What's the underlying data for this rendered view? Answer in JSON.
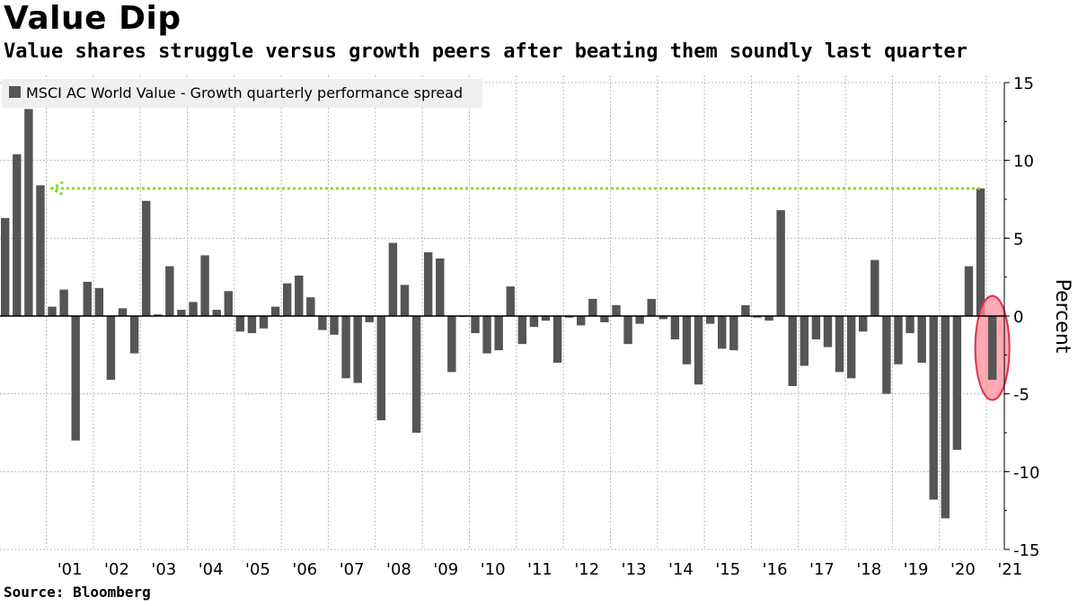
{
  "header": {
    "title": "Value Dip",
    "subtitle": "Value shares struggle versus growth peers after beating them soundly last quarter"
  },
  "footer": {
    "source": "Source: Bloomberg"
  },
  "colors": {
    "bar": "#555555",
    "highlight_fill": "#ff8c9a",
    "highlight_stroke": "#e0304a",
    "arrow": "#88dd22",
    "grid": "#bbbbbb"
  },
  "chart_data": {
    "type": "bar",
    "title": "Value Dip",
    "subtitle": "Value shares struggle versus growth peers after beating them soundly last quarter",
    "ylabel": "Percent",
    "ylim": [
      -15,
      15
    ],
    "yticks": [
      15,
      10,
      5,
      0,
      -5,
      -10,
      -15
    ],
    "grid": true,
    "legend_position": "top-left",
    "x_tick_labels": [
      "'01",
      "'02",
      "'03",
      "'04",
      "'05",
      "'06",
      "'07",
      "'08",
      "'09",
      "'10",
      "'11",
      "'12",
      "'13",
      "'14",
      "'15",
      "'16",
      "'17",
      "'18",
      "'19",
      "'20",
      "'21"
    ],
    "series": [
      {
        "name": "MSCI AC World Value - Growth quarterly performance spread",
        "start_quarter": "2000 Q1",
        "values": [
          6.3,
          10.4,
          13.3,
          8.4,
          0.6,
          1.7,
          -8.0,
          2.2,
          1.8,
          -4.1,
          0.5,
          -2.4,
          7.4,
          0.1,
          3.2,
          0.4,
          0.9,
          3.9,
          0.4,
          1.6,
          -1.0,
          -1.1,
          -0.8,
          0.6,
          2.1,
          2.6,
          1.2,
          -0.9,
          -1.2,
          -4.0,
          -4.3,
          -0.4,
          -6.7,
          4.7,
          2.0,
          -7.5,
          4.1,
          3.7,
          -3.6,
          0.0,
          -1.1,
          -2.4,
          -2.2,
          1.9,
          -1.8,
          -0.7,
          -0.3,
          -3.0,
          -0.1,
          -0.6,
          1.1,
          -0.4,
          0.7,
          -1.8,
          -0.5,
          1.1,
          -0.2,
          -1.5,
          -3.1,
          -4.4,
          -0.5,
          -2.1,
          -2.2,
          0.7,
          -0.1,
          -0.3,
          6.8,
          -4.5,
          -3.2,
          -1.5,
          -2.0,
          -3.6,
          -4.0,
          -1.0,
          3.6,
          -5.0,
          -3.1,
          -1.1,
          -3.0,
          -11.8,
          -13.0,
          -8.6,
          3.2,
          8.2,
          -4.1
        ]
      }
    ],
    "annotations": {
      "reference_line_value": 8.2,
      "reference_line_note": "dotted arrow from latest high back to 2000 Q4 level",
      "highlighted_bar": "2021 Q1"
    }
  }
}
